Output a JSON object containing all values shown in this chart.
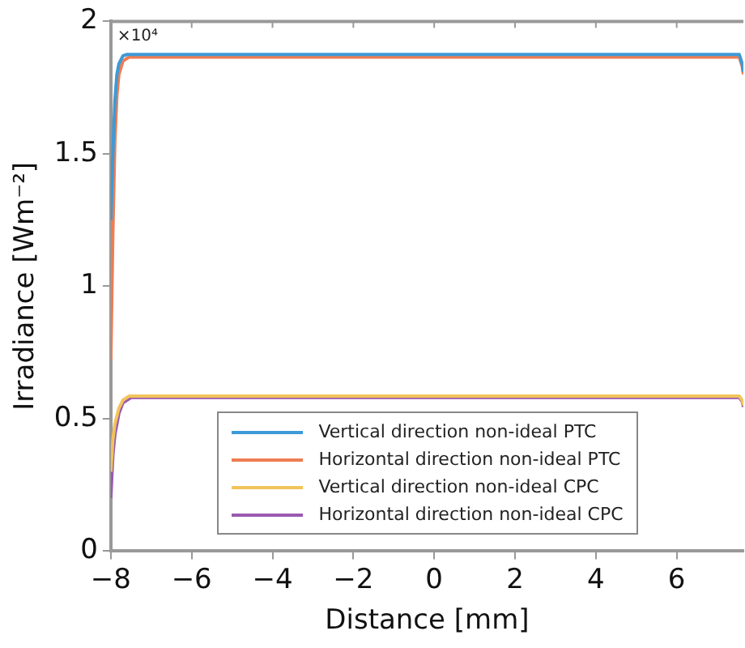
{
  "chart_data": {
    "type": "line",
    "xlabel": "Distance [mm]",
    "ylabel": "Irradiance [Wm⁻²]",
    "annotations": [
      "×10⁴"
    ],
    "xlim": [
      -8,
      7.65
    ],
    "xticks": [
      -8,
      -6,
      -4,
      -2,
      0,
      2,
      4,
      6
    ],
    "ylim": [
      0,
      2
    ],
    "yticks": [
      0,
      0.5,
      1,
      1.5,
      2
    ],
    "grid": false,
    "legend": "bottom",
    "marker": "none",
    "line_style": "solid",
    "series": [
      {
        "name": "Vertical direction non-ideal PTC",
        "color": "#3d9ad8",
        "x": [
          -8,
          -7.95,
          -7.9,
          -7.85,
          -7.8,
          -7.7,
          -7.6,
          7.55,
          7.62,
          7.65
        ],
        "values": [
          1.25,
          1.5,
          1.7,
          1.8,
          1.84,
          1.87,
          1.875,
          1.875,
          1.84,
          1.81
        ]
      },
      {
        "name": "Horizontal direction non-ideal PTC",
        "color": "#ee7d52",
        "x": [
          -8,
          -7.95,
          -7.9,
          -7.85,
          -7.8,
          -7.7,
          -7.55,
          7.55,
          7.62,
          7.65
        ],
        "values": [
          0.72,
          1.2,
          1.55,
          1.72,
          1.8,
          1.85,
          1.865,
          1.865,
          1.83,
          1.8
        ]
      },
      {
        "name": "Vertical direction non-ideal CPC",
        "color": "#f2c45a",
        "x": [
          -8,
          -7.95,
          -7.9,
          -7.8,
          -7.7,
          -7.55,
          7.55,
          7.62,
          7.65
        ],
        "values": [
          0.3,
          0.42,
          0.48,
          0.54,
          0.57,
          0.585,
          0.585,
          0.57,
          0.55
        ]
      },
      {
        "name": "Horizontal direction non-ideal CPC",
        "color": "#9a5ab0",
        "x": [
          -8,
          -7.95,
          -7.9,
          -7.8,
          -7.7,
          -7.5,
          7.55,
          7.62,
          7.65
        ],
        "values": [
          0.2,
          0.36,
          0.44,
          0.52,
          0.56,
          0.58,
          0.58,
          0.565,
          0.545
        ]
      }
    ]
  }
}
